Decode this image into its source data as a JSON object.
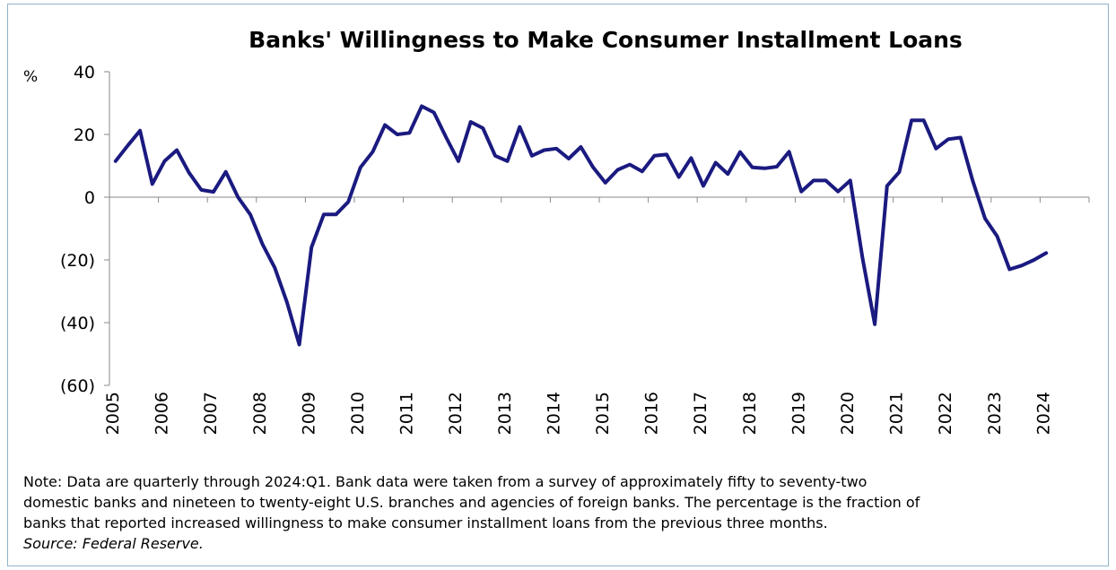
{
  "chart_data": {
    "type": "line",
    "title": "Banks' Willingness to Make Consumer Installment Loans",
    "ylabel": "%",
    "xlabel": "",
    "ylim": [
      -60,
      40
    ],
    "y_ticks": [
      40,
      20,
      0,
      -20,
      -40,
      -60
    ],
    "y_tick_labels": [
      "40",
      "20",
      "0",
      "(20)",
      "(40)",
      "(60)"
    ],
    "x_tick_labels": [
      "2005",
      "2006",
      "2007",
      "2008",
      "2009",
      "2010",
      "2011",
      "2012",
      "2013",
      "2014",
      "2015",
      "2016",
      "2017",
      "2018",
      "2019",
      "2020",
      "2021",
      "2022",
      "2023",
      "2024"
    ],
    "x_start": "2005:Q1",
    "x_end": "2024:Q1",
    "frequency": "quarterly",
    "series_color": "#1a1a80",
    "grid": false,
    "legend": "none",
    "series": [
      {
        "values": [
          11.5,
          16.5,
          21.2,
          4.2,
          11.5,
          15.0,
          7.8,
          2.3,
          1.7,
          8.1,
          0,
          -5.5,
          -15,
          -22.5,
          -33.5,
          -47,
          -16,
          -5.5,
          -5.5,
          -1.5,
          9.5,
          14.5,
          23,
          20,
          20.5,
          29,
          27,
          19,
          11.5,
          24,
          22,
          13.2,
          11.5,
          22.4,
          13.2,
          15,
          15.5,
          12.3,
          16,
          9.5,
          4.6,
          8.7,
          10.4,
          8.2,
          13.2,
          13.6,
          6.4,
          12.5,
          3.6,
          11,
          7.4,
          14.4,
          9.5,
          9.2,
          9.7,
          14.5,
          1.8,
          5.3,
          5.3,
          1.8,
          5.3,
          -19.5,
          -40.5,
          3.6,
          8,
          24.5,
          24.5,
          15.5,
          18.5,
          19,
          5.2,
          -6.8,
          -12.5,
          -23,
          -21.8,
          -20,
          -17.8
        ]
      }
    ]
  },
  "note": {
    "lines": [
      "Note: Data are quarterly through 2024:Q1. Bank data were taken from a survey of approximately fifty to seventy-two",
      "domestic banks and nineteen to twenty-eight U.S. branches and agencies of foreign banks. The percentage is the fraction of",
      "banks that reported increased willingness to make consumer installment loans from the previous three months."
    ],
    "source": "Source: Federal Reserve."
  }
}
